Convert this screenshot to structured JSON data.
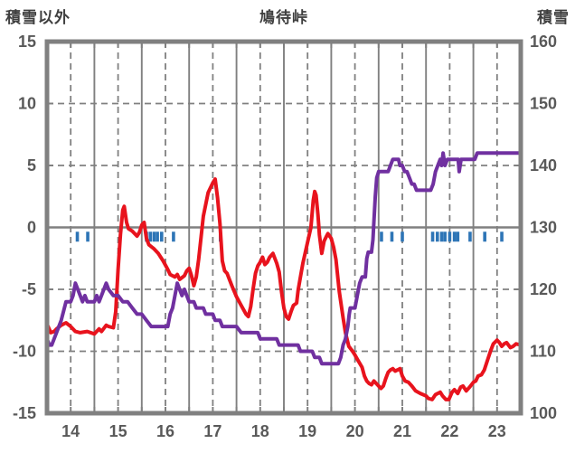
{
  "chart_data": {
    "type": "line",
    "title": "鳩待峠",
    "left_axis": {
      "label": "積雪以外",
      "range": [
        -15,
        15
      ],
      "ticks": [
        15,
        10,
        5,
        0,
        -5,
        -10,
        -15
      ]
    },
    "right_axis": {
      "label": "積雪",
      "range": [
        100,
        160
      ],
      "ticks": [
        160,
        150,
        140,
        130,
        120,
        110,
        100
      ]
    },
    "x_axis": {
      "tick_labels": [
        "14",
        "15",
        "16",
        "17",
        "18",
        "19",
        "20",
        "21",
        "22",
        "23"
      ],
      "range": [
        14,
        24
      ],
      "solid_gridlines_at_day_boundaries": true,
      "dashed_gridlines_at_half_days": true
    },
    "grid": "on",
    "legend": "none",
    "series": [
      {
        "name": "積雪以外",
        "axis": "left",
        "color": "#e8131d",
        "style": "line",
        "points": [
          [
            14.0,
            -7.8
          ],
          [
            14.08,
            -8.5
          ],
          [
            14.15,
            -8.4
          ],
          [
            14.2,
            -8.2
          ],
          [
            14.3,
            -7.9
          ],
          [
            14.4,
            -7.7
          ],
          [
            14.5,
            -8.0
          ],
          [
            14.6,
            -8.4
          ],
          [
            14.7,
            -8.5
          ],
          [
            14.85,
            -8.4
          ],
          [
            15.0,
            -8.6
          ],
          [
            15.1,
            -8.2
          ],
          [
            15.15,
            -8.4
          ],
          [
            15.25,
            -7.9
          ],
          [
            15.3,
            -8.0
          ],
          [
            15.4,
            -8.1
          ],
          [
            15.45,
            -6.8
          ],
          [
            15.5,
            -3.4
          ],
          [
            15.55,
            -0.6
          ],
          [
            15.6,
            1.4
          ],
          [
            15.63,
            1.7
          ],
          [
            15.68,
            0.4
          ],
          [
            15.72,
            -0.1
          ],
          [
            15.8,
            -0.3
          ],
          [
            15.9,
            -0.7
          ],
          [
            15.95,
            -0.4
          ],
          [
            16.0,
            0.2
          ],
          [
            16.05,
            0.4
          ],
          [
            16.1,
            -0.9
          ],
          [
            16.15,
            -1.4
          ],
          [
            16.25,
            -1.7
          ],
          [
            16.35,
            -2.1
          ],
          [
            16.45,
            -2.7
          ],
          [
            16.55,
            -3.4
          ],
          [
            16.6,
            -3.8
          ],
          [
            16.7,
            -4.0
          ],
          [
            16.75,
            -3.8
          ],
          [
            16.8,
            -4.2
          ],
          [
            16.9,
            -3.9
          ],
          [
            16.95,
            -3.5
          ],
          [
            17.0,
            -3.3
          ],
          [
            17.05,
            -3.9
          ],
          [
            17.1,
            -4.7
          ],
          [
            17.15,
            -4.0
          ],
          [
            17.2,
            -2.6
          ],
          [
            17.3,
            0.9
          ],
          [
            17.4,
            2.8
          ],
          [
            17.5,
            3.6
          ],
          [
            17.55,
            3.9
          ],
          [
            17.6,
            2.4
          ],
          [
            17.65,
            0.3
          ],
          [
            17.7,
            -2.7
          ],
          [
            17.75,
            -3.5
          ],
          [
            17.8,
            -3.7
          ],
          [
            17.9,
            -4.7
          ],
          [
            18.0,
            -5.6
          ],
          [
            18.1,
            -6.3
          ],
          [
            18.2,
            -7.0
          ],
          [
            18.25,
            -7.2
          ],
          [
            18.3,
            -6.4
          ],
          [
            18.35,
            -5.0
          ],
          [
            18.4,
            -3.7
          ],
          [
            18.45,
            -3.1
          ],
          [
            18.5,
            -2.8
          ],
          [
            18.55,
            -2.4
          ],
          [
            18.6,
            -3.0
          ],
          [
            18.65,
            -2.8
          ],
          [
            18.7,
            -2.4
          ],
          [
            18.77,
            -2.1
          ],
          [
            18.85,
            -2.9
          ],
          [
            18.9,
            -3.6
          ],
          [
            18.95,
            -5.2
          ],
          [
            19.0,
            -6.5
          ],
          [
            19.05,
            -7.2
          ],
          [
            19.1,
            -7.4
          ],
          [
            19.15,
            -6.8
          ],
          [
            19.2,
            -6.3
          ],
          [
            19.27,
            -6.1
          ],
          [
            19.3,
            -5.1
          ],
          [
            19.35,
            -4.0
          ],
          [
            19.4,
            -2.9
          ],
          [
            19.5,
            -1.2
          ],
          [
            19.57,
            0.0
          ],
          [
            19.62,
            2.2
          ],
          [
            19.65,
            2.9
          ],
          [
            19.68,
            2.6
          ],
          [
            19.72,
            1.0
          ],
          [
            19.75,
            -0.6
          ],
          [
            19.8,
            -2.1
          ],
          [
            19.85,
            -1.1
          ],
          [
            19.9,
            -0.7
          ],
          [
            19.93,
            -0.5
          ],
          [
            20.0,
            -0.9
          ],
          [
            20.05,
            -1.6
          ],
          [
            20.1,
            -2.6
          ],
          [
            20.17,
            -5.2
          ],
          [
            20.25,
            -7.3
          ],
          [
            20.3,
            -8.5
          ],
          [
            20.37,
            -9.6
          ],
          [
            20.45,
            -10.0
          ],
          [
            20.5,
            -10.3
          ],
          [
            20.56,
            -10.7
          ],
          [
            20.65,
            -11.3
          ],
          [
            20.7,
            -12.0
          ],
          [
            20.75,
            -12.4
          ],
          [
            20.8,
            -12.6
          ],
          [
            20.85,
            -12.7
          ],
          [
            20.9,
            -12.4
          ],
          [
            20.95,
            -12.6
          ],
          [
            21.0,
            -12.8
          ],
          [
            21.05,
            -13.0
          ],
          [
            21.1,
            -12.8
          ],
          [
            21.15,
            -12.2
          ],
          [
            21.2,
            -11.7
          ],
          [
            21.25,
            -11.5
          ],
          [
            21.3,
            -11.4
          ],
          [
            21.35,
            -11.6
          ],
          [
            21.4,
            -11.5
          ],
          [
            21.45,
            -11.4
          ],
          [
            21.5,
            -12.0
          ],
          [
            21.56,
            -12.4
          ],
          [
            21.63,
            -12.5
          ],
          [
            21.7,
            -12.8
          ],
          [
            21.78,
            -13.2
          ],
          [
            21.88,
            -13.4
          ],
          [
            22.0,
            -13.6
          ],
          [
            22.05,
            -13.8
          ],
          [
            22.13,
            -13.9
          ],
          [
            22.2,
            -13.5
          ],
          [
            22.25,
            -13.4
          ],
          [
            22.3,
            -13.3
          ],
          [
            22.35,
            -13.6
          ],
          [
            22.42,
            -13.9
          ],
          [
            22.48,
            -13.9
          ],
          [
            22.55,
            -13.3
          ],
          [
            22.6,
            -13.1
          ],
          [
            22.67,
            -13.4
          ],
          [
            22.73,
            -12.9
          ],
          [
            22.78,
            -12.8
          ],
          [
            22.85,
            -13.2
          ],
          [
            22.92,
            -12.9
          ],
          [
            23.0,
            -12.5
          ],
          [
            23.05,
            -12.4
          ],
          [
            23.1,
            -12.0
          ],
          [
            23.17,
            -11.9
          ],
          [
            23.23,
            -11.5
          ],
          [
            23.3,
            -10.7
          ],
          [
            23.36,
            -10.0
          ],
          [
            23.42,
            -9.4
          ],
          [
            23.5,
            -9.1
          ],
          [
            23.55,
            -9.3
          ],
          [
            23.6,
            -9.6
          ],
          [
            23.65,
            -9.4
          ],
          [
            23.7,
            -9.3
          ],
          [
            23.78,
            -9.7
          ],
          [
            23.84,
            -9.6
          ],
          [
            23.9,
            -9.4
          ],
          [
            24.0,
            -9.5
          ]
        ]
      },
      {
        "name": "積雪",
        "axis": "right",
        "color": "#7030a0",
        "style": "line",
        "points": [
          [
            14.0,
            112
          ],
          [
            14.05,
            111
          ],
          [
            14.1,
            111
          ],
          [
            14.2,
            113
          ],
          [
            14.3,
            115
          ],
          [
            14.4,
            118
          ],
          [
            14.5,
            118
          ],
          [
            14.55,
            119
          ],
          [
            14.6,
            121
          ],
          [
            14.7,
            119
          ],
          [
            14.75,
            118
          ],
          [
            14.8,
            119
          ],
          [
            14.85,
            118
          ],
          [
            14.9,
            118
          ],
          [
            15.0,
            118
          ],
          [
            15.05,
            119
          ],
          [
            15.1,
            118
          ],
          [
            15.2,
            120
          ],
          [
            15.25,
            121
          ],
          [
            15.3,
            120
          ],
          [
            15.4,
            119
          ],
          [
            15.5,
            119
          ],
          [
            15.6,
            118
          ],
          [
            15.7,
            118
          ],
          [
            15.8,
            117
          ],
          [
            15.9,
            116
          ],
          [
            16.0,
            116
          ],
          [
            16.1,
            115
          ],
          [
            16.2,
            114
          ],
          [
            16.3,
            114
          ],
          [
            16.5,
            114
          ],
          [
            16.55,
            114
          ],
          [
            16.6,
            116
          ],
          [
            16.65,
            117
          ],
          [
            16.7,
            119
          ],
          [
            16.75,
            121
          ],
          [
            16.8,
            120
          ],
          [
            16.85,
            119
          ],
          [
            16.9,
            120
          ],
          [
            16.95,
            119
          ],
          [
            17.0,
            118
          ],
          [
            17.1,
            118
          ],
          [
            17.15,
            117
          ],
          [
            17.3,
            117
          ],
          [
            17.35,
            116
          ],
          [
            17.5,
            116
          ],
          [
            17.55,
            115
          ],
          [
            17.65,
            115
          ],
          [
            17.7,
            114
          ],
          [
            17.95,
            114
          ],
          [
            18.0,
            114
          ],
          [
            18.1,
            113
          ],
          [
            18.45,
            113
          ],
          [
            18.5,
            112
          ],
          [
            18.85,
            112
          ],
          [
            18.9,
            111
          ],
          [
            19.3,
            111
          ],
          [
            19.35,
            110
          ],
          [
            19.6,
            110
          ],
          [
            19.65,
            109
          ],
          [
            19.75,
            109
          ],
          [
            19.8,
            108
          ],
          [
            20.15,
            108
          ],
          [
            20.2,
            109
          ],
          [
            20.25,
            111
          ],
          [
            20.3,
            112
          ],
          [
            20.35,
            114
          ],
          [
            20.38,
            116
          ],
          [
            20.4,
            117
          ],
          [
            20.5,
            117
          ],
          [
            20.55,
            119
          ],
          [
            20.6,
            121
          ],
          [
            20.65,
            122
          ],
          [
            20.72,
            122
          ],
          [
            20.75,
            125
          ],
          [
            20.78,
            126
          ],
          [
            20.85,
            126
          ],
          [
            20.88,
            128
          ],
          [
            20.9,
            131
          ],
          [
            20.93,
            135
          ],
          [
            20.96,
            138
          ],
          [
            21.0,
            139
          ],
          [
            21.2,
            139
          ],
          [
            21.25,
            140
          ],
          [
            21.3,
            141
          ],
          [
            21.42,
            141
          ],
          [
            21.45,
            140
          ],
          [
            21.5,
            140
          ],
          [
            21.55,
            139
          ],
          [
            21.6,
            139
          ],
          [
            21.65,
            138
          ],
          [
            21.7,
            137
          ],
          [
            21.75,
            137
          ],
          [
            21.8,
            136
          ],
          [
            22.1,
            136
          ],
          [
            22.15,
            137
          ],
          [
            22.2,
            139
          ],
          [
            22.25,
            140
          ],
          [
            22.3,
            141
          ],
          [
            22.33,
            140
          ],
          [
            22.36,
            142
          ],
          [
            22.4,
            140
          ],
          [
            22.45,
            141
          ],
          [
            22.68,
            141
          ],
          [
            22.7,
            139
          ],
          [
            22.74,
            141
          ],
          [
            23.0,
            141
          ],
          [
            23.03,
            141
          ],
          [
            23.08,
            142
          ],
          [
            23.3,
            142
          ],
          [
            23.6,
            142
          ],
          [
            24.0,
            142
          ]
        ]
      },
      {
        "name": "blue-event-ticks",
        "axis": "left",
        "color": "#2e75b6",
        "style": "tick-marks",
        "tick_value_range": [
          -0.35,
          -1.15
        ],
        "days": [
          14.64,
          14.86,
          16.1,
          16.18,
          16.26,
          16.33,
          16.42,
          16.67,
          17.66,
          21.06,
          21.28,
          21.5,
          22.14,
          22.24,
          22.33,
          22.4,
          22.5,
          22.6,
          22.67,
          22.93,
          23.24,
          23.6
        ]
      }
    ]
  },
  "colors": {
    "red_line": "#e8131d",
    "purple_line": "#7030a0",
    "blue_ticks": "#2e75b6",
    "grid": "#808080",
    "frame": "#808080",
    "header_text": "#3f3f3f",
    "tick_text": "#595959",
    "background": "#ffffff"
  }
}
